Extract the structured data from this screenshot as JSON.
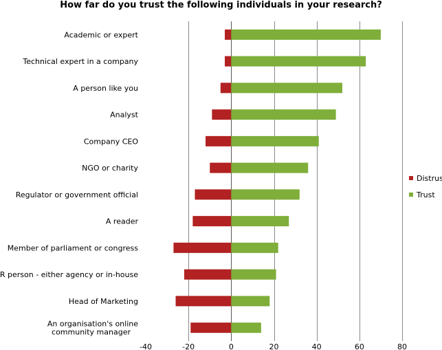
{
  "chart_data": {
    "type": "bar",
    "orientation": "horizontal",
    "stacked": true,
    "title": "How far do you trust the following individuals in your research?",
    "categories": [
      "Academic or expert",
      "Technical expert in a company",
      "A person like you",
      "Analyst",
      "Company CEO",
      "NGO or charity",
      "Regulator or government official",
      "A reader",
      "Member of parliament or congress",
      "PR person - either agency or in-house",
      "Head of Marketing",
      "An organisation's online community manager"
    ],
    "series": [
      {
        "name": "Distrust",
        "color": "#b22222",
        "values": [
          -3,
          -3,
          -5,
          -9,
          -12,
          -10,
          -17,
          -18,
          -27,
          -22,
          -26,
          -19
        ]
      },
      {
        "name": "Trust",
        "color": "#7fae3a",
        "values": [
          70,
          63,
          52,
          49,
          41,
          36,
          32,
          27,
          22,
          21,
          18,
          14
        ]
      }
    ],
    "xlim": [
      -40,
      80
    ],
    "xticks": [
      -40,
      -20,
      0,
      20,
      40,
      60,
      80
    ],
    "grid": "vertical",
    "legend_position": "right"
  }
}
